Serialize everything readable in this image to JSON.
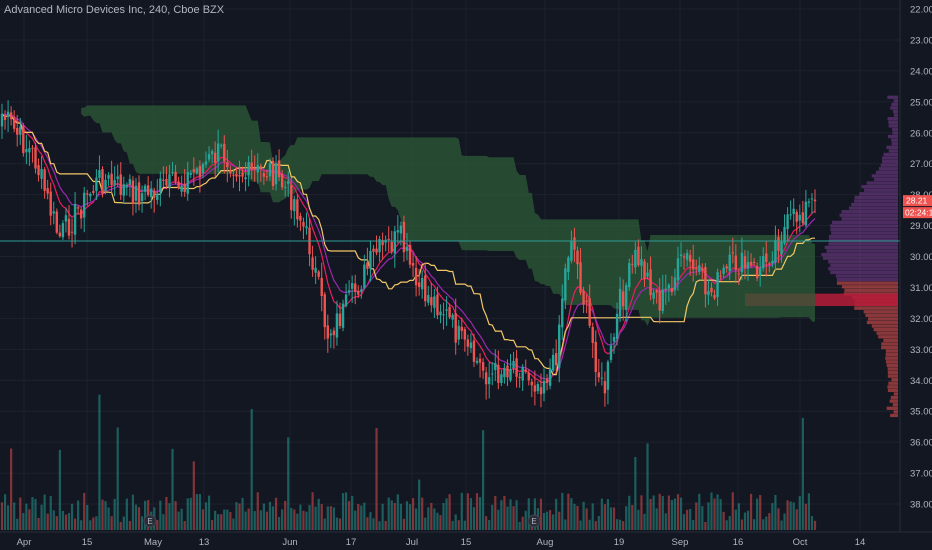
{
  "header": {
    "title": "Advanced Micro Devices Inc, 240, Cboe BZX"
  },
  "colors": {
    "background": "#131722",
    "up": "#26a69a",
    "down": "#ef5350",
    "cloud": "#2e5b37",
    "baseline": "#f3c766",
    "ema_fast": "#e91e63",
    "ema_slow": "#9c27b0",
    "hline": "#2f9c95",
    "volume_profile": "#7e3f96",
    "poc": "#b71c3a"
  },
  "price_axis": {
    "labels": [
      "22.00",
      "23.00",
      "24.00",
      "25.00",
      "26.00",
      "27.00",
      "28.00",
      "29.00",
      "30.00",
      "31.00",
      "32.00",
      "33.00",
      "34.00",
      "35.00",
      "36.00",
      "37.00",
      "38.00"
    ],
    "last_price": "28.21",
    "countdown": "02:24:17"
  },
  "time_axis": {
    "labels": [
      "Apr",
      "15",
      "May",
      "13",
      "Jun",
      "17",
      "Jul",
      "15",
      "Aug",
      "19",
      "Sep",
      "16",
      "Oct",
      "14"
    ]
  },
  "earnings_markers": [
    "E",
    "E"
  ],
  "chart_data": {
    "type": "candlestick",
    "title": "Advanced Micro Devices Inc, 240, Cboe BZX",
    "interval": "240",
    "y_axis": {
      "labels": [
        "22.00",
        "23.00",
        "24.00",
        "25.00",
        "26.00",
        "27.00",
        "28.00",
        "29.00",
        "30.00",
        "31.00",
        "32.00",
        "33.00",
        "34.00",
        "35.00",
        "36.00",
        "37.00",
        "38.00"
      ],
      "range": [
        21.8,
        38.6
      ]
    },
    "x_axis": {
      "labels": [
        "Apr",
        "15",
        "May",
        "13",
        "Jun",
        "17",
        "Jul",
        "15",
        "Aug",
        "19",
        "Sep",
        "16",
        "Oct",
        "14"
      ]
    },
    "horizontal_line": 29.5,
    "last_price": 28.21,
    "key_points": [
      {
        "t": 0.0,
        "close": 25.4
      },
      {
        "t": 0.04,
        "close": 26.8
      },
      {
        "t": 0.07,
        "close": 29.4
      },
      {
        "t": 0.12,
        "close": 27.5
      },
      {
        "t": 0.17,
        "close": 28.0
      },
      {
        "t": 0.22,
        "close": 27.6
      },
      {
        "t": 0.27,
        "close": 26.6
      },
      {
        "t": 0.3,
        "close": 27.4
      },
      {
        "t": 0.33,
        "close": 27.2
      },
      {
        "t": 0.36,
        "close": 28.2
      },
      {
        "t": 0.38,
        "close": 29.8
      },
      {
        "t": 0.4,
        "close": 32.5
      },
      {
        "t": 0.42,
        "close": 31.8
      },
      {
        "t": 0.46,
        "close": 29.9
      },
      {
        "t": 0.49,
        "close": 29.4
      },
      {
        "t": 0.51,
        "close": 31.0
      },
      {
        "t": 0.54,
        "close": 31.6
      },
      {
        "t": 0.57,
        "close": 33.0
      },
      {
        "t": 0.6,
        "close": 33.9
      },
      {
        "t": 0.63,
        "close": 33.4
      },
      {
        "t": 0.66,
        "close": 34.1
      },
      {
        "t": 0.68,
        "close": 33.5
      },
      {
        "t": 0.69,
        "close": 31.0
      },
      {
        "t": 0.7,
        "close": 29.2
      },
      {
        "t": 0.72,
        "close": 32.0
      },
      {
        "t": 0.74,
        "close": 34.5
      },
      {
        "t": 0.76,
        "close": 31.5
      },
      {
        "t": 0.78,
        "close": 30.0
      },
      {
        "t": 0.81,
        "close": 31.5
      },
      {
        "t": 0.84,
        "close": 30.0
      },
      {
        "t": 0.87,
        "close": 31.2
      },
      {
        "t": 0.9,
        "close": 30.2
      },
      {
        "t": 0.93,
        "close": 30.5
      },
      {
        "t": 0.96,
        "close": 29.2
      },
      {
        "t": 0.98,
        "close": 28.6
      },
      {
        "t": 1.0,
        "close": 28.21
      }
    ]
  }
}
